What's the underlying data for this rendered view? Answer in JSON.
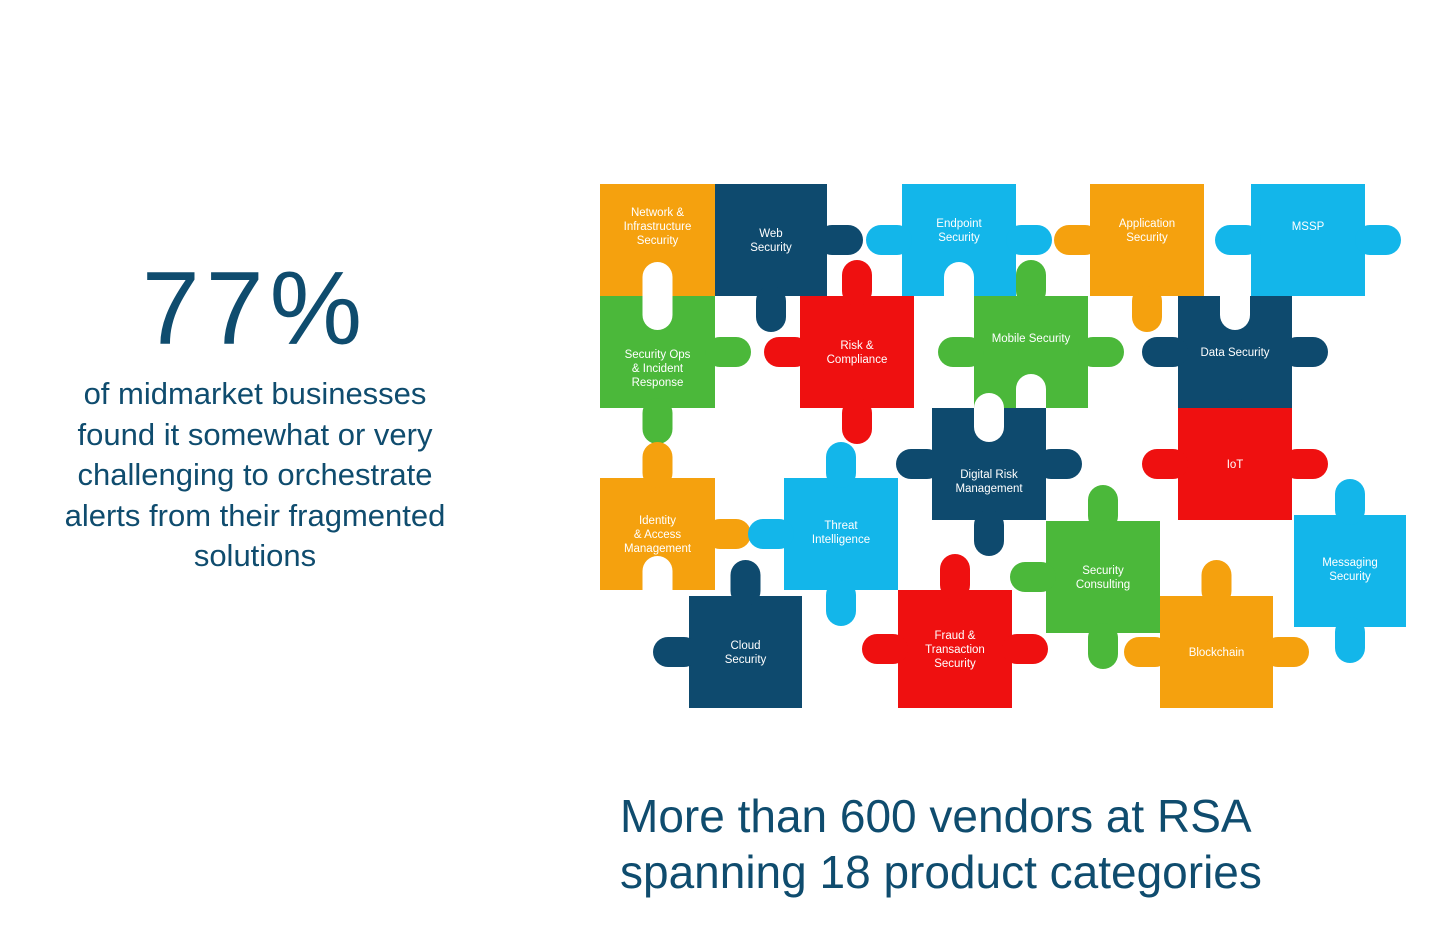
{
  "stat": {
    "value": "77%",
    "caption": "of midmarket businesses found it somewhat or very challenging to orchestrate alerts from their fragmented solutions"
  },
  "tagline": {
    "line1": "More than 600 vendors at RSA",
    "line2": "spanning 18 product categories"
  },
  "colors": {
    "text": "#0f4c6e",
    "orange": "#f5a10e",
    "navy": "#0e4a6e",
    "sky": "#13b6ea",
    "green": "#4bb83a",
    "red": "#ef1010"
  },
  "pieces": [
    {
      "id": "network",
      "label": [
        "Network &",
        "Infrastructure",
        "Security"
      ],
      "color": "orange"
    },
    {
      "id": "web",
      "label": [
        "Web",
        "Security"
      ],
      "color": "navy"
    },
    {
      "id": "endpoint",
      "label": [
        "Endpoint",
        "Security"
      ],
      "color": "sky"
    },
    {
      "id": "application",
      "label": [
        "Application",
        "Security"
      ],
      "color": "orange"
    },
    {
      "id": "mssp",
      "label": [
        "MSSP"
      ],
      "color": "sky"
    },
    {
      "id": "secops",
      "label": [
        "Security Ops",
        "& Incident",
        "Response"
      ],
      "color": "green"
    },
    {
      "id": "risk",
      "label": [
        "Risk &",
        "Compliance"
      ],
      "color": "red"
    },
    {
      "id": "mobile",
      "label": [
        "Mobile Security"
      ],
      "color": "green"
    },
    {
      "id": "data",
      "label": [
        "Data Security"
      ],
      "color": "navy"
    },
    {
      "id": "identity",
      "label": [
        "Identity",
        "& Access",
        "Management"
      ],
      "color": "orange"
    },
    {
      "id": "threat",
      "label": [
        "Threat",
        "Intelligence"
      ],
      "color": "sky"
    },
    {
      "id": "digitalrisk",
      "label": [
        "Digital Risk",
        "Management"
      ],
      "color": "navy"
    },
    {
      "id": "iot",
      "label": [
        "IoT"
      ],
      "color": "red"
    },
    {
      "id": "consulting",
      "label": [
        "Security",
        "Consulting"
      ],
      "color": "green"
    },
    {
      "id": "messaging",
      "label": [
        "Messaging",
        "Security"
      ],
      "color": "sky"
    },
    {
      "id": "cloud",
      "label": [
        "Cloud",
        "Security"
      ],
      "color": "navy"
    },
    {
      "id": "fraud",
      "label": [
        "Fraud &",
        "Transaction",
        "Security"
      ],
      "color": "red"
    },
    {
      "id": "blockchain",
      "label": [
        "Blockchain"
      ],
      "color": "orange"
    }
  ]
}
